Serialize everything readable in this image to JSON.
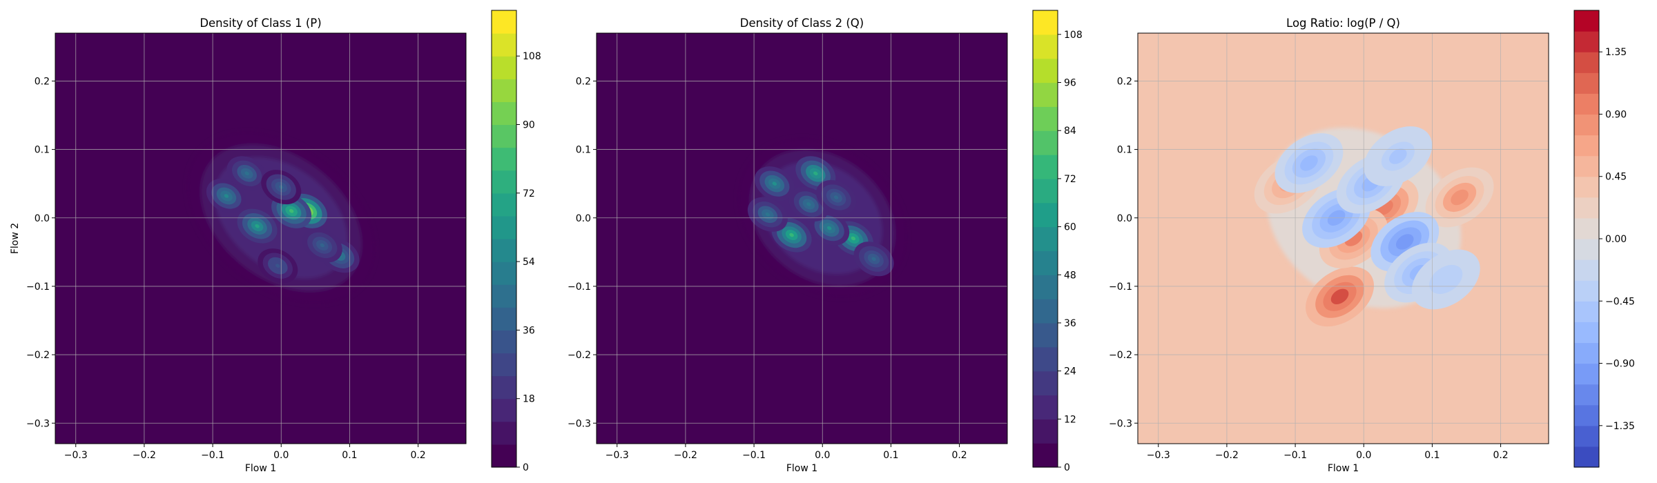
{
  "chart_data": [
    {
      "type": "heatmap",
      "subtype": "filled-contour",
      "title": "Density of Class 1 (P)",
      "xlabel": "Flow 1",
      "ylabel": "Flow 2",
      "xlim": [
        -0.33,
        0.27
      ],
      "ylim": [
        -0.33,
        0.27
      ],
      "xticks": [
        -0.3,
        -0.2,
        -0.1,
        0.0,
        0.1,
        0.2
      ],
      "yticks": [
        -0.3,
        -0.2,
        -0.1,
        0.0,
        0.1,
        0.2
      ],
      "xtick_labels": [
        "−0.3",
        "−0.2",
        "−0.1",
        "0.0",
        "0.1",
        "0.2"
      ],
      "ytick_labels": [
        "−0.3",
        "−0.2",
        "−0.1",
        "0.0",
        "0.1",
        "0.2"
      ],
      "grid": true,
      "colormap": "viridis",
      "colorbar": {
        "range": [
          0,
          120
        ],
        "levels": 20,
        "ticks": [
          0,
          18,
          36,
          54,
          72,
          90,
          108
        ],
        "tick_labels": [
          "0",
          "18",
          "36",
          "54",
          "72",
          "90",
          "108"
        ]
      },
      "density_support": {
        "center": [
          0.0,
          0.0
        ],
        "extent_x": [
          -0.17,
          0.14
        ],
        "extent_y": [
          -0.14,
          0.13
        ],
        "orientation": "tilted down-right"
      },
      "peaks": [
        {
          "x": 0.038,
          "y": 0.01,
          "value": 112
        },
        {
          "x": 0.015,
          "y": 0.01,
          "value": 80
        },
        {
          "x": -0.035,
          "y": -0.012,
          "value": 68
        },
        {
          "x": -0.08,
          "y": 0.032,
          "value": 55
        },
        {
          "x": -0.05,
          "y": 0.065,
          "value": 45
        },
        {
          "x": 0.085,
          "y": -0.055,
          "value": 50
        },
        {
          "x": 0.06,
          "y": -0.04,
          "value": 40
        },
        {
          "x": -0.005,
          "y": -0.07,
          "value": 35
        },
        {
          "x": 0.0,
          "y": 0.045,
          "value": 38
        }
      ]
    },
    {
      "type": "heatmap",
      "subtype": "filled-contour",
      "title": "Density of Class 2 (Q)",
      "xlabel": "Flow 1",
      "ylabel": "",
      "xlim": [
        -0.33,
        0.27
      ],
      "ylim": [
        -0.33,
        0.27
      ],
      "xticks": [
        -0.3,
        -0.2,
        -0.1,
        0.0,
        0.1,
        0.2
      ],
      "yticks": [
        -0.3,
        -0.2,
        -0.1,
        0.0,
        0.1,
        0.2
      ],
      "xtick_labels": [
        "−0.3",
        "−0.2",
        "−0.1",
        "0.0",
        "0.1",
        "0.2"
      ],
      "ytick_labels": [
        "−0.3",
        "−0.2",
        "−0.1",
        "0.0",
        "0.1",
        "0.2"
      ],
      "grid": true,
      "colormap": "viridis",
      "colorbar": {
        "range": [
          0,
          114
        ],
        "levels": 19,
        "ticks": [
          0,
          12,
          24,
          36,
          48,
          60,
          72,
          84,
          96,
          108
        ],
        "tick_labels": [
          "0",
          "12",
          "24",
          "36",
          "48",
          "60",
          "72",
          "84",
          "96",
          "108"
        ]
      },
      "density_support": {
        "center": [
          0.0,
          0.0
        ],
        "extent_x": [
          -0.13,
          0.14
        ],
        "extent_y": [
          -0.15,
          0.12
        ],
        "orientation": "tilted down-right"
      },
      "peaks": [
        {
          "x": -0.045,
          "y": -0.025,
          "value": 75
        },
        {
          "x": -0.01,
          "y": 0.065,
          "value": 70
        },
        {
          "x": 0.045,
          "y": -0.03,
          "value": 72
        },
        {
          "x": -0.07,
          "y": 0.05,
          "value": 55
        },
        {
          "x": 0.01,
          "y": -0.015,
          "value": 55
        },
        {
          "x": -0.08,
          "y": 0.005,
          "value": 45
        },
        {
          "x": 0.075,
          "y": -0.06,
          "value": 40
        },
        {
          "x": -0.02,
          "y": 0.02,
          "value": 45
        },
        {
          "x": 0.02,
          "y": 0.03,
          "value": 40
        }
      ]
    },
    {
      "type": "heatmap",
      "subtype": "filled-contour",
      "title": "Log Ratio: log(P / Q)",
      "xlabel": "Flow 1",
      "ylabel": "",
      "xlim": [
        -0.33,
        0.27
      ],
      "ylim": [
        -0.33,
        0.27
      ],
      "xticks": [
        -0.3,
        -0.2,
        -0.1,
        0.0,
        0.1,
        0.2
      ],
      "yticks": [
        -0.3,
        -0.2,
        -0.1,
        0.0,
        0.1,
        0.2
      ],
      "xtick_labels": [
        "−0.3",
        "−0.2",
        "−0.1",
        "0.0",
        "0.1",
        "0.2"
      ],
      "ytick_labels": [
        "−0.3",
        "−0.2",
        "−0.1",
        "0.0",
        "0.1",
        "0.2"
      ],
      "grid": true,
      "colormap": "coolwarm",
      "colorbar": {
        "range": [
          -1.65,
          1.65
        ],
        "levels": 22,
        "ticks": [
          -1.35,
          -0.9,
          -0.45,
          0.0,
          0.45,
          0.9,
          1.35
        ],
        "tick_labels": [
          "−1.35",
          "−0.90",
          "−0.45",
          "0.00",
          "0.45",
          "0.90",
          "1.35"
        ]
      },
      "background_value": 0.3,
      "features": [
        {
          "x": -0.035,
          "y": -0.115,
          "value": 1.3
        },
        {
          "x": 0.03,
          "y": 0.015,
          "value": 1.0
        },
        {
          "x": 0.14,
          "y": 0.03,
          "value": 0.75
        },
        {
          "x": -0.11,
          "y": 0.05,
          "value": 0.6
        },
        {
          "x": -0.015,
          "y": -0.03,
          "value": 0.9
        },
        {
          "x": -0.04,
          "y": 0.0,
          "value": -0.9
        },
        {
          "x": 0.06,
          "y": -0.035,
          "value": -1.0
        },
        {
          "x": 0.08,
          "y": -0.08,
          "value": -0.7
        },
        {
          "x": -0.08,
          "y": 0.08,
          "value": -0.6
        },
        {
          "x": 0.01,
          "y": 0.05,
          "value": -0.7
        },
        {
          "x": 0.05,
          "y": 0.09,
          "value": -0.5
        },
        {
          "x": 0.12,
          "y": -0.09,
          "value": -0.45
        }
      ]
    }
  ]
}
